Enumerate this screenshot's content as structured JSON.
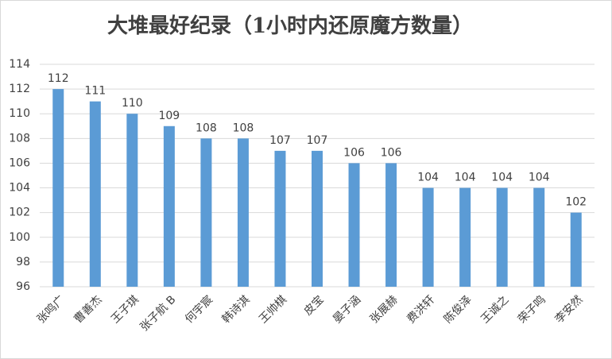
{
  "chart_data": {
    "type": "bar",
    "title": "大堆最好纪录（1小时内还原魔方数量）",
    "categories": [
      "张鸣广",
      "曹善杰",
      "王子琪",
      "张子航 B",
      "何宇宸",
      "韩诗淇",
      "王帅棋",
      "皮宝",
      "晏子涵",
      "张展赫",
      "费洪轩",
      "陈俊泽",
      "王诚之",
      "荣子鸣",
      "李安然"
    ],
    "values": [
      112,
      111,
      110,
      109,
      108,
      108,
      107,
      107,
      106,
      106,
      104,
      104,
      104,
      104,
      102
    ],
    "color": "#5b9bd5",
    "ylim": [
      96,
      114
    ],
    "yticks": [
      96,
      98,
      100,
      102,
      104,
      106,
      108,
      110,
      112,
      114
    ],
    "grid": true
  }
}
